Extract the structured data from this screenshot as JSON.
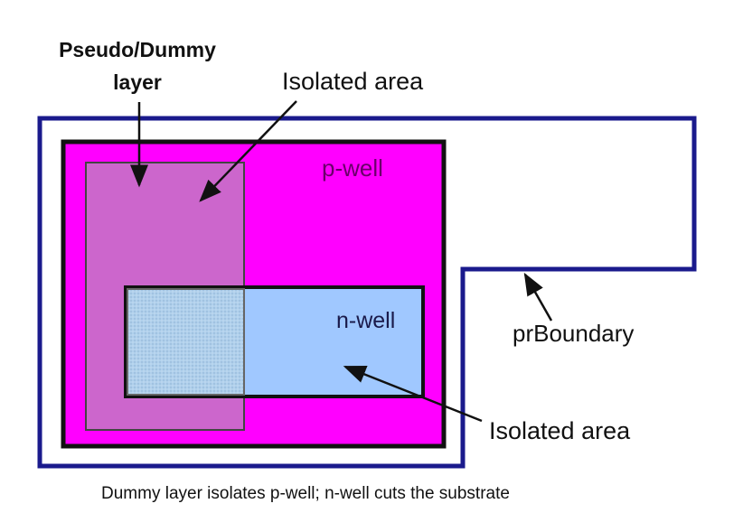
{
  "labels": {
    "dummy_line1": "Pseudo/Dummy",
    "dummy_line2": "layer",
    "isolated_top": "Isolated area",
    "pwell": "p-well",
    "nwell": "n-well",
    "prboundary": "prBoundary",
    "isolated_bottom": "Isolated area"
  },
  "caption": "Dummy layer isolates p-well; n-well cuts the substrate",
  "colors": {
    "prboundary_stroke": "#1a1a8c",
    "pwell_fill": "#ff00ff",
    "dummy_fill": "#cc66cc",
    "nwell_fill": "#a0c8ff",
    "overlap_fill": "#b0d0ec",
    "outline": "#111111",
    "text": "#111111",
    "pwell_text": "#6a006a",
    "nwell_text": "#1a1a4a"
  }
}
